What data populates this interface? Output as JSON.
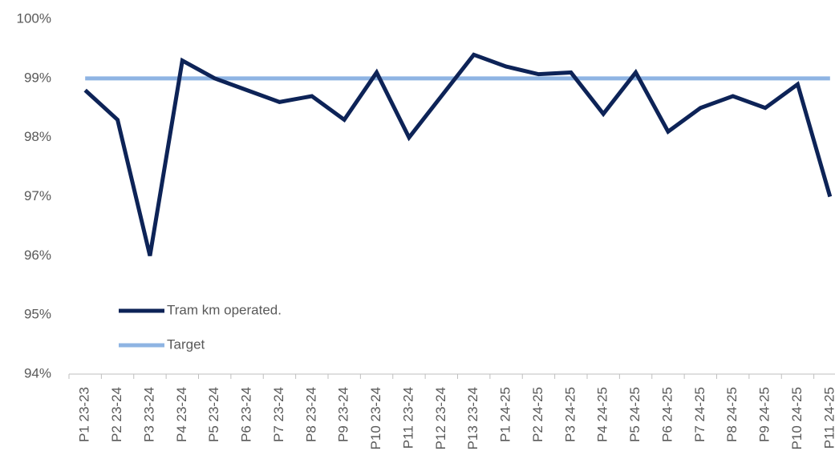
{
  "chart_data": {
    "type": "line",
    "categories": [
      "P1 23-23",
      "P2 23-24",
      "P3 23-24",
      "P4 23-24",
      "P5 23-24",
      "P6 23-24",
      "P7 23-24",
      "P8 23-24",
      "P9 23-24",
      "P10 23-24",
      "P11 23-24",
      "P12 23-24",
      "P13 23-24",
      "P1 24-25",
      "P2 24-25",
      "P3 24-25",
      "P4 24-25",
      "P5 24-25",
      "P6 24-25",
      "P7 24-25",
      "P8 24-25",
      "P9 24-25",
      "P10 24-25",
      "P11 24-25"
    ],
    "series": [
      {
        "name": "Tram km operated.",
        "color": "#0d2357",
        "values": [
          98.8,
          98.3,
          96.0,
          99.3,
          99.0,
          98.8,
          98.6,
          98.7,
          98.3,
          99.1,
          98.0,
          98.7,
          99.4,
          99.2,
          99.07,
          99.1,
          98.4,
          99.1,
          98.1,
          98.5,
          98.7,
          98.5,
          98.9,
          97.0
        ]
      },
      {
        "name": "Target",
        "color": "#8eb4e3",
        "values": [
          99,
          99,
          99,
          99,
          99,
          99,
          99,
          99,
          99,
          99,
          99,
          99,
          99,
          99,
          99,
          99,
          99,
          99,
          99,
          99,
          99,
          99,
          99,
          99
        ]
      }
    ],
    "ylim": [
      94,
      100
    ],
    "yticks": [
      {
        "value": 94,
        "label": "94%"
      },
      {
        "value": 95,
        "label": "95%"
      },
      {
        "value": 96,
        "label": "96%"
      },
      {
        "value": 97,
        "label": "97%"
      },
      {
        "value": 98,
        "label": "98%"
      },
      {
        "value": 99,
        "label": "99%"
      },
      {
        "value": 100,
        "label": "100%"
      }
    ],
    "grid": false,
    "legend": "lower-left"
  }
}
